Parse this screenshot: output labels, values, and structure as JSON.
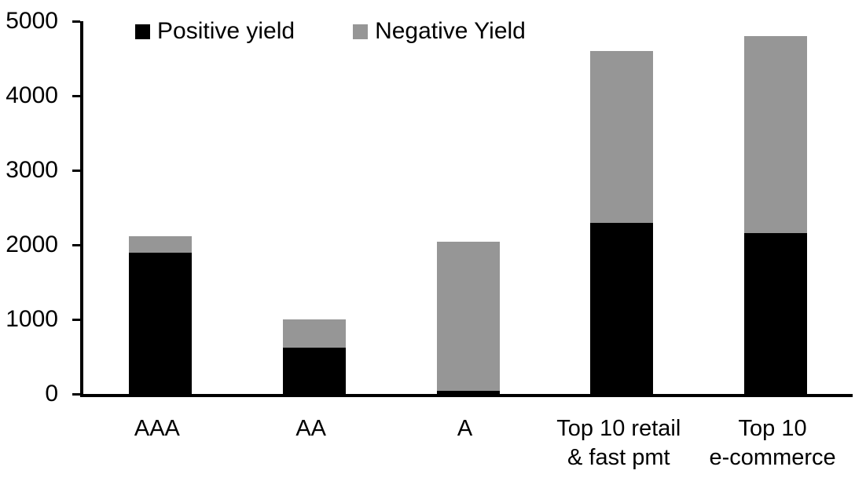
{
  "chart_data": {
    "type": "bar",
    "stacked": true,
    "title": "",
    "xlabel": "",
    "ylabel": "",
    "categories": [
      "AAA",
      "AA",
      "A",
      "Top 10 retail\n& fast pmt",
      "Top 10\ne-commerce"
    ],
    "series": [
      {
        "name": "Positive yield",
        "color": "#000000",
        "values": [
          1900,
          620,
          40,
          2300,
          2160
        ]
      },
      {
        "name": "Negative Yield",
        "color": "#969696",
        "values": [
          220,
          385,
          2000,
          2300,
          2640
        ]
      }
    ],
    "totals": [
      2120,
      1005,
      2040,
      4600,
      4800
    ],
    "ylim": [
      0,
      5000
    ],
    "yticks": [
      "0",
      "1000",
      "2000",
      "3000",
      "4000",
      "5000"
    ],
    "ytick_values": [
      0,
      1000,
      2000,
      3000,
      4000,
      5000
    ],
    "grid": false,
    "legend_position": "top-left-inside",
    "axis_color": "#000000",
    "background_color": "#ffffff"
  }
}
